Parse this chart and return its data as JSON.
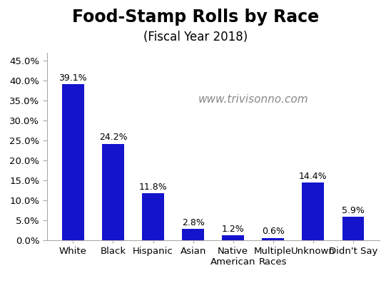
{
  "title": "Food-Stamp Rolls by Race",
  "subtitle": "(Fiscal Year 2018)",
  "watermark": "www.trivisonno.com",
  "categories": [
    "White",
    "Black",
    "Hispanic",
    "Asian",
    "Native\nAmerican",
    "Multiple\nRaces",
    "Unknown",
    "Didn't Say"
  ],
  "values": [
    39.1,
    24.2,
    11.8,
    2.8,
    1.2,
    0.6,
    14.4,
    5.9
  ],
  "labels": [
    "39.1%",
    "24.2%",
    "11.8%",
    "2.8%",
    "1.2%",
    "0.6%",
    "14.4%",
    "5.9%"
  ],
  "bar_color": "#1414cc",
  "ylim": [
    0,
    47
  ],
  "yticks": [
    0,
    5,
    10,
    15,
    20,
    25,
    30,
    35,
    40,
    45
  ],
  "title_fontsize": 17,
  "subtitle_fontsize": 12,
  "label_fontsize": 9,
  "tick_fontsize": 9.5,
  "watermark_fontsize": 11,
  "watermark_color": "#888888",
  "background_color": "#ffffff"
}
